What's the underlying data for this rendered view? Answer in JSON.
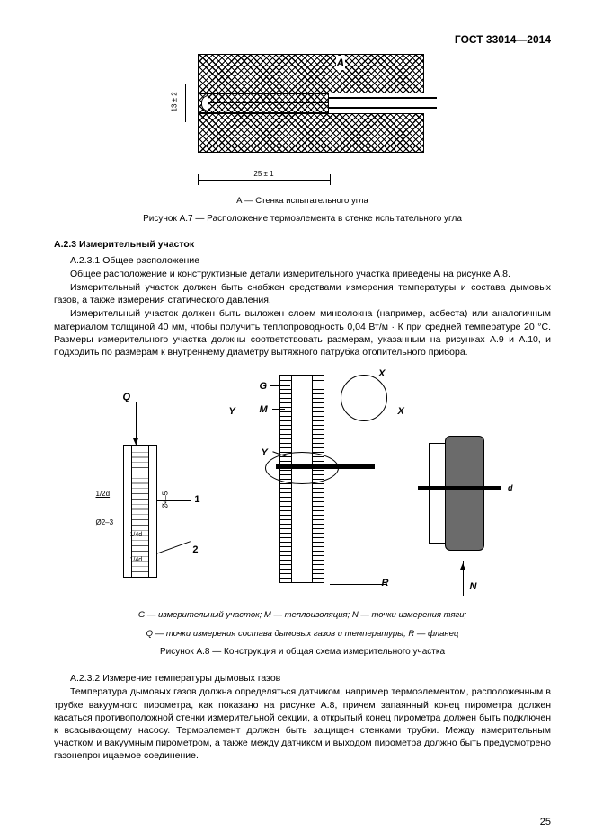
{
  "header": "ГОСТ 33014—2014",
  "fig7": {
    "labelA": "A",
    "dimV": "13 ± 2",
    "dimH": "25 ± 1",
    "caption": "А — Стенка испытательного угла",
    "title": "Рисунок А.7 — Расположение термоэлемента в стенке испытательного угла"
  },
  "sA23": {
    "heading": "А.2.3 Измерительный участок",
    "p1": "А.2.3.1 Общее расположение",
    "p2": "Общее расположение и конструктивные детали измерительного участка приведены на рисунке А.8.",
    "p3": "Измерительный участок должен быть снабжен средствами измерения температуры и состава дымовых газов, а также измерения статического давления.",
    "p4": "Измерительный участок должен быть выложен слоем минволокна (например, асбеста) или аналогичным материалом толщиной 40 мм, чтобы получить теплопроводность 0,04 Вт/м · К при средней температуре 20 °С. Размеры измерительного участка должны соответствовать размерам, указанным на рисунках А.9 и А.10, и подходить по размерам к внутреннему диаметру вытяжного патрубка отопительного прибора."
  },
  "fig8": {
    "Y": "Y",
    "X": "X",
    "Q": "Q",
    "G": "G",
    "M": "M",
    "R": "R",
    "N": "N",
    "Yc": "Y",
    "Xc": "X",
    "n1": "1",
    "n2": "2",
    "d12": "1/2d",
    "d23": "Ø2–3",
    "d45": "Ø4–5",
    "d14a": "1/4d",
    "d14b": "1/4d",
    "dxd": "d",
    "legend1": "G — измерительный участок; М — теплоизоляция; N — точки измерения тяги;",
    "legend2": "Q — точки измерения состава дымовых газов и температуры; R — фланец",
    "title": "Рисунок А.8 — Конструкция и общая схема измерительного участка"
  },
  "sA232": {
    "h": "А.2.3.2 Измерение температуры дымовых газов",
    "p": "Температура дымовых газов должна определяться датчиком, например термоэлементом, расположенным в трубке вакуумного пирометра, как показано на рисунке А.8, причем запаянный конец пирометра должен касаться противоположной стенки измерительной секции, а открытый конец пирометра должен быть подключен к всасывающему насосу. Термоэлемент должен быть защищен стенками трубки. Между измерительным участком и вакуумным пирометром, а также между датчиком и выходом пирометра должно быть предусмотрено газонепроницаемое соединение."
  },
  "pageNum": "25"
}
